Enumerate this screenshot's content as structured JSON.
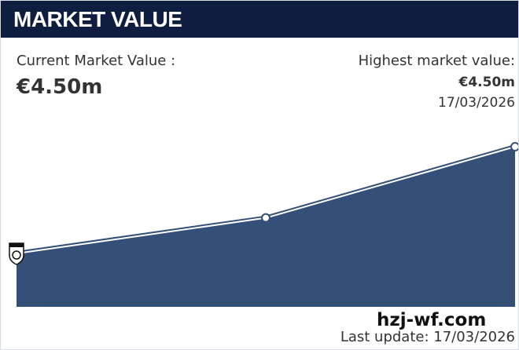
{
  "header": {
    "title": "MARKET VALUE"
  },
  "current": {
    "label": "Current Market Value :",
    "value": "€4.50m"
  },
  "highest": {
    "label": "Highest market value:",
    "value": "€4.50m",
    "date": "17/03/2026"
  },
  "chart_data": {
    "type": "area",
    "values": [
      1.5,
      2.5,
      4.5
    ],
    "color": "#344f78",
    "ylim": [
      0,
      4.5
    ]
  },
  "footer": {
    "watermark": "hzj-wf.com",
    "last_update": "Last update: 17/03/2026"
  }
}
